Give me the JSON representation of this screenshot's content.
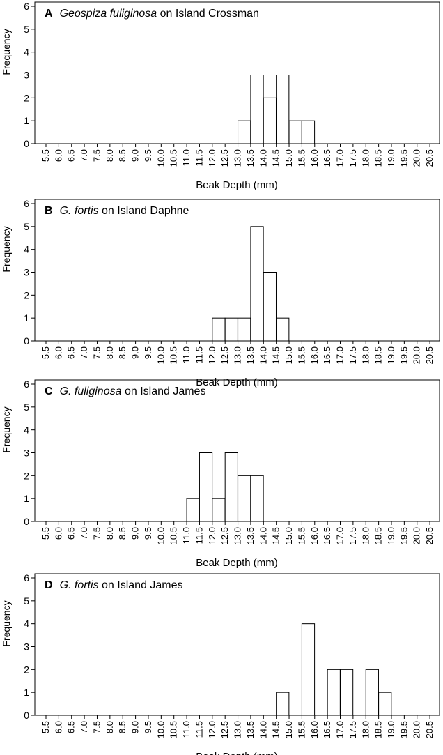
{
  "chart_data": [
    {
      "type": "bar",
      "panel_letter": "A",
      "title_italic": "Geospiza fuliginosa",
      "title_rest": " on Island Crossman",
      "xlabel": "Beak Depth (mm)",
      "ylabel": "Frequency",
      "ylim": [
        0,
        6
      ],
      "yticks": [
        "0",
        "1",
        "2",
        "3",
        "4",
        "5",
        "6"
      ],
      "categories": [
        "5.5",
        "6.0",
        "6.5",
        "7.0",
        "7.5",
        "8.0",
        "8.5",
        "9.0",
        "9.5",
        "10.0",
        "10.5",
        "11.0",
        "11.5",
        "12.0",
        "12.5",
        "13.0",
        "13.5",
        "14.0",
        "14.5",
        "15.0",
        "15.5",
        "16.0",
        "16.5",
        "17.0",
        "17.5",
        "18.0",
        "18.5",
        "19.0",
        "19.5",
        "20.0",
        "20.5"
      ],
      "values": [
        0,
        0,
        0,
        0,
        0,
        0,
        0,
        0,
        0,
        0,
        0,
        0,
        0,
        0,
        0,
        1,
        3,
        2,
        3,
        1,
        1,
        0,
        0,
        0,
        0,
        0,
        0,
        0,
        0,
        0,
        0
      ]
    },
    {
      "type": "bar",
      "panel_letter": "B",
      "title_italic": "G. fortis",
      "title_rest": " on Island Daphne",
      "xlabel": "Beak Depth (mm)",
      "ylabel": "Frequency",
      "ylim": [
        0,
        6
      ],
      "yticks": [
        "0",
        "1",
        "2",
        "3",
        "4",
        "5",
        "6"
      ],
      "categories": [
        "5.5",
        "6.0",
        "6.5",
        "7.0",
        "7.5",
        "8.0",
        "8.5",
        "9.0",
        "9.5",
        "10.0",
        "10.5",
        "11.0",
        "11.5",
        "12.0",
        "12.5",
        "13.0",
        "13.5",
        "14.0",
        "14.5",
        "15.0",
        "15.5",
        "16.0",
        "16.5",
        "17.0",
        "17.5",
        "18.0",
        "18.5",
        "19.0",
        "19.5",
        "20.0",
        "20.5"
      ],
      "values": [
        0,
        0,
        0,
        0,
        0,
        0,
        0,
        0,
        0,
        0,
        0,
        0,
        0,
        1,
        1,
        1,
        5,
        3,
        1,
        0,
        0,
        0,
        0,
        0,
        0,
        0,
        0,
        0,
        0,
        0,
        0
      ]
    },
    {
      "type": "bar",
      "panel_letter": "C",
      "title_italic": "G. fuliginosa",
      "title_rest": " on Island James",
      "xlabel": "Beak Depth (mm)",
      "ylabel": "Frequency",
      "ylim": [
        0,
        6
      ],
      "yticks": [
        "0",
        "1",
        "2",
        "3",
        "4",
        "5",
        "6"
      ],
      "categories": [
        "5.5",
        "6.0",
        "6.5",
        "7.0",
        "7.5",
        "8.0",
        "8.5",
        "9.0",
        "9.5",
        "10.0",
        "10.5",
        "11.0",
        "11.5",
        "12.0",
        "12.5",
        "13.0",
        "13.5",
        "14.0",
        "14.5",
        "15.0",
        "15.5",
        "16.0",
        "16.5",
        "17.0",
        "17.5",
        "18.0",
        "18.5",
        "19.0",
        "19.5",
        "20.0",
        "20.5"
      ],
      "values": [
        0,
        0,
        0,
        0,
        0,
        0,
        0,
        0,
        0,
        0,
        0,
        1,
        3,
        1,
        3,
        2,
        2,
        0,
        0,
        0,
        0,
        0,
        0,
        0,
        0,
        0,
        0,
        0,
        0,
        0,
        0
      ]
    },
    {
      "type": "bar",
      "panel_letter": "D",
      "title_italic": "G. fortis",
      "title_rest": " on Island James",
      "xlabel": "Beak Depth (mm)",
      "ylabel": "Frequency",
      "ylim": [
        0,
        6
      ],
      "yticks": [
        "0",
        "1",
        "2",
        "3",
        "4",
        "5",
        "6"
      ],
      "categories": [
        "5.5",
        "6.0",
        "6.5",
        "7.0",
        "7.5",
        "8.0",
        "8.5",
        "9.0",
        "9.5",
        "10.0",
        "10.5",
        "11.0",
        "11.5",
        "12.0",
        "12.5",
        "13.0",
        "13.5",
        "14.0",
        "14.5",
        "15.0",
        "15.5",
        "16.0",
        "16.5",
        "17.0",
        "17.5",
        "18.0",
        "18.5",
        "19.0",
        "19.5",
        "20.0",
        "20.5"
      ],
      "values": [
        0,
        0,
        0,
        0,
        0,
        0,
        0,
        0,
        0,
        0,
        0,
        0,
        0,
        0,
        0,
        0,
        0,
        0,
        1,
        0,
        4,
        0,
        2,
        2,
        0,
        2,
        1,
        0,
        0,
        0,
        0
      ]
    }
  ],
  "colors": {
    "bar_fill": "#ffffff",
    "bar_stroke": "#000000",
    "axis": "#000000"
  }
}
